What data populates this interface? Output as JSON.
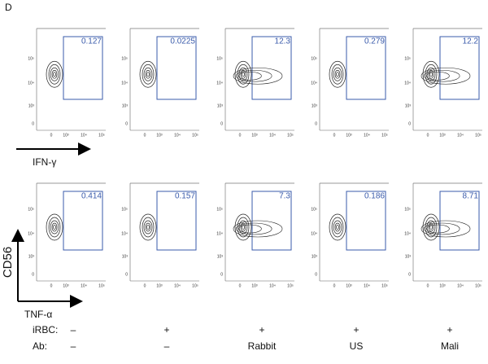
{
  "panel_label": "D",
  "y_label": "CD56",
  "axis_ticks": [
    "0",
    "10³",
    "10⁴",
    "10⁵"
  ],
  "rows": [
    {
      "x_label": "IFN-γ",
      "gates": [
        0.127,
        0.0225,
        12.3,
        0.279,
        12.2
      ]
    },
    {
      "x_label": "TNF-α",
      "gates": [
        0.414,
        0.157,
        7.3,
        0.186,
        8.71
      ]
    }
  ],
  "conditions": {
    "row_labels": [
      "iRBC:",
      "Ab:"
    ],
    "columns": [
      {
        "irbc": "–",
        "ab": "–"
      },
      {
        "irbc": "+",
        "ab": "–"
      },
      {
        "irbc": "+",
        "ab": "Rabbit"
      },
      {
        "irbc": "+",
        "ab": "US"
      },
      {
        "irbc": "+",
        "ab": "Mali"
      }
    ]
  }
}
